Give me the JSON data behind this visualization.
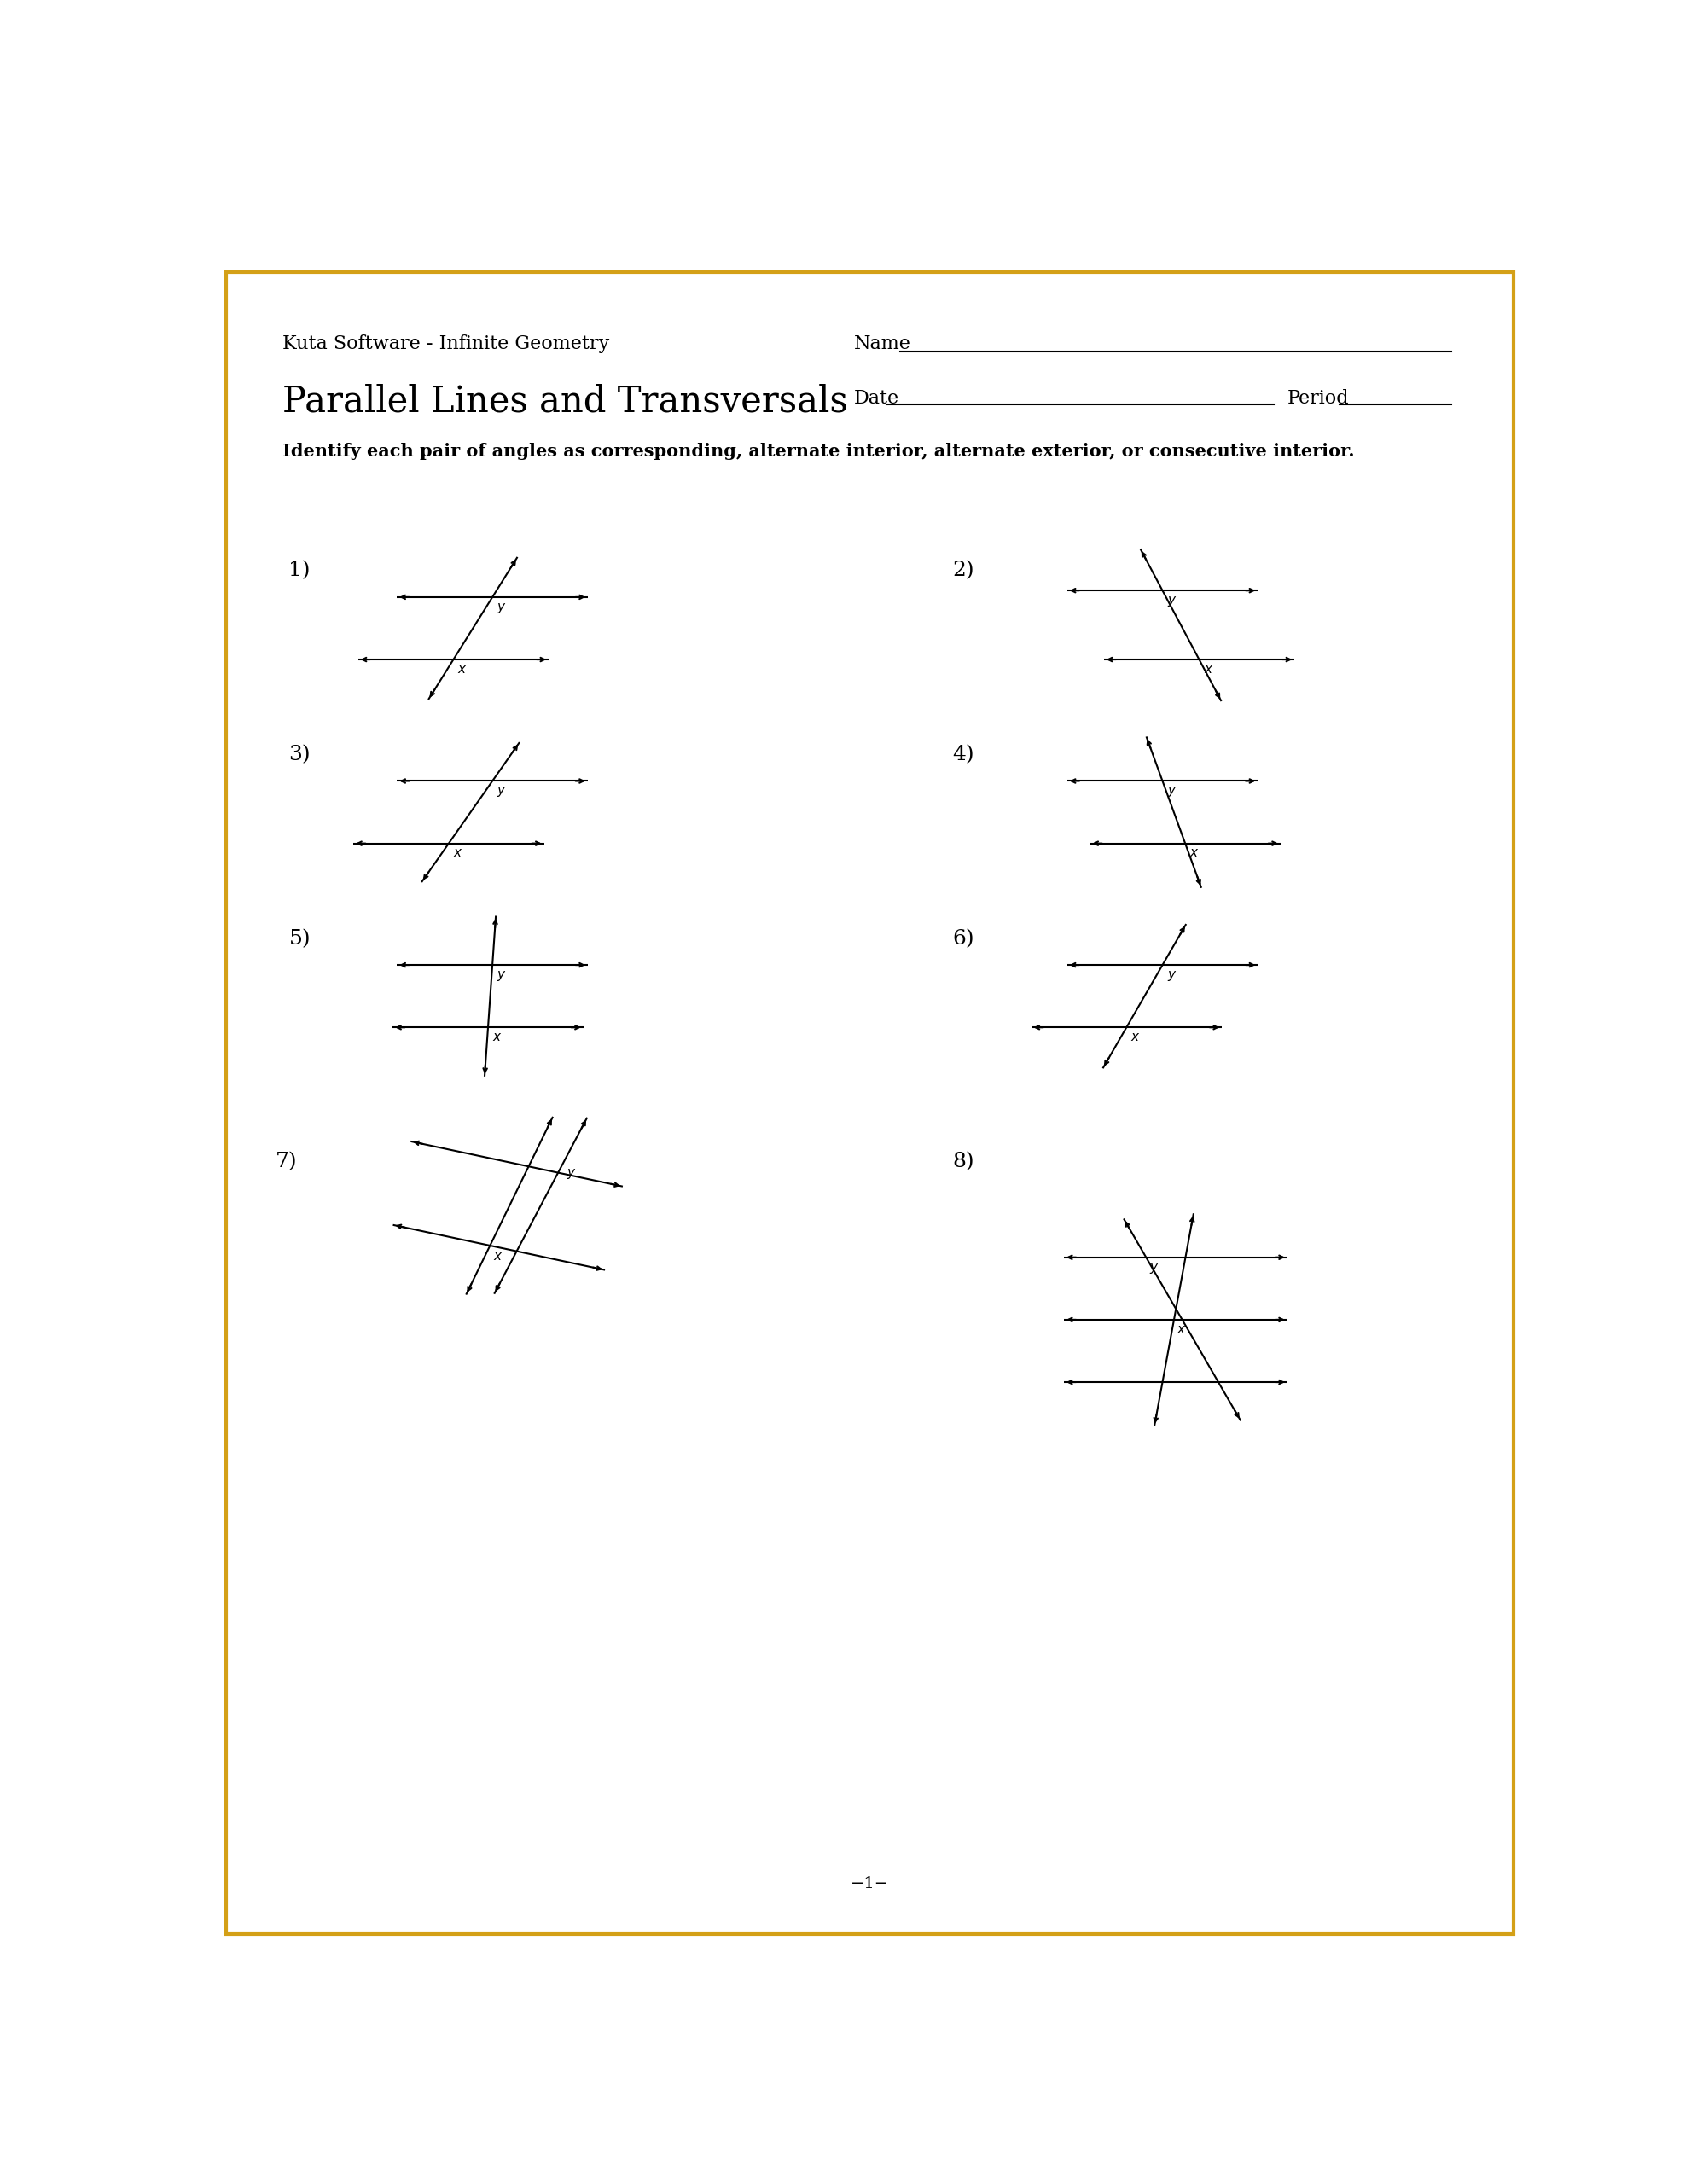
{
  "title_software": "Kuta Software - Infinite Geometry",
  "title_main": "Parallel Lines and Transversals",
  "name_label": "Name",
  "date_label": "Date",
  "period_label": "Period",
  "instructions": "Identify each pair of angles as corresponding, alternate interior, alternate exterior, or consecutive interior.",
  "page_number": "−1−",
  "background_color": "#ffffff",
  "border_color": "#d4a017",
  "text_color": "#000000"
}
